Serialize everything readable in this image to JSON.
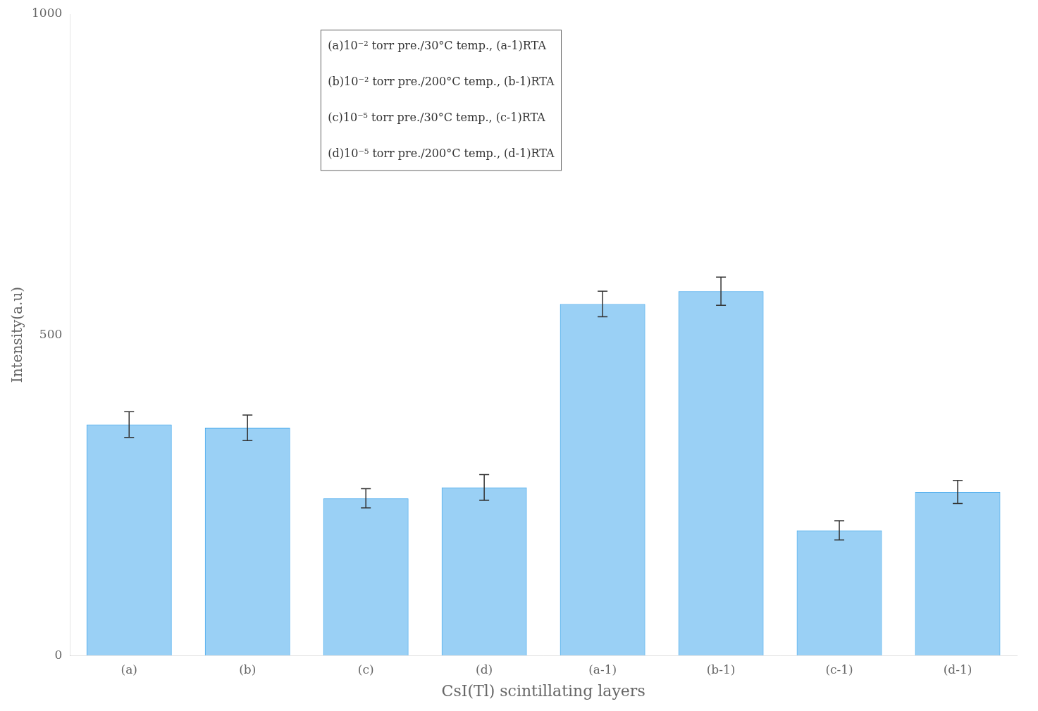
{
  "chart_data": {
    "type": "bar",
    "categories": [
      "(a)",
      "(b)",
      "(c)",
      "(d)",
      "(a-1)",
      "(b-1)",
      "(c-1)",
      "(d-1)"
    ],
    "values": [
      360,
      355,
      245,
      262,
      548,
      568,
      195,
      255
    ],
    "errors": [
      20,
      20,
      15,
      20,
      20,
      22,
      15,
      18
    ],
    "xlabel": "CsI(Tl) scintillating layers",
    "ylabel": "Intensity(a.u)",
    "ylim": [
      0,
      1000
    ],
    "yticks": [
      0,
      500,
      1000
    ],
    "grid": false,
    "annotations": [
      "(a)10⁻² torr pre./30°C temp., (a-1)RTA",
      "(b)10⁻² torr pre./200°C temp., (b-1)RTA",
      "(c)10⁻⁵ torr pre./30°C temp., (c-1)RTA",
      "(d)10⁻⁵ torr pre./200°C temp., (d-1)RTA"
    ]
  }
}
